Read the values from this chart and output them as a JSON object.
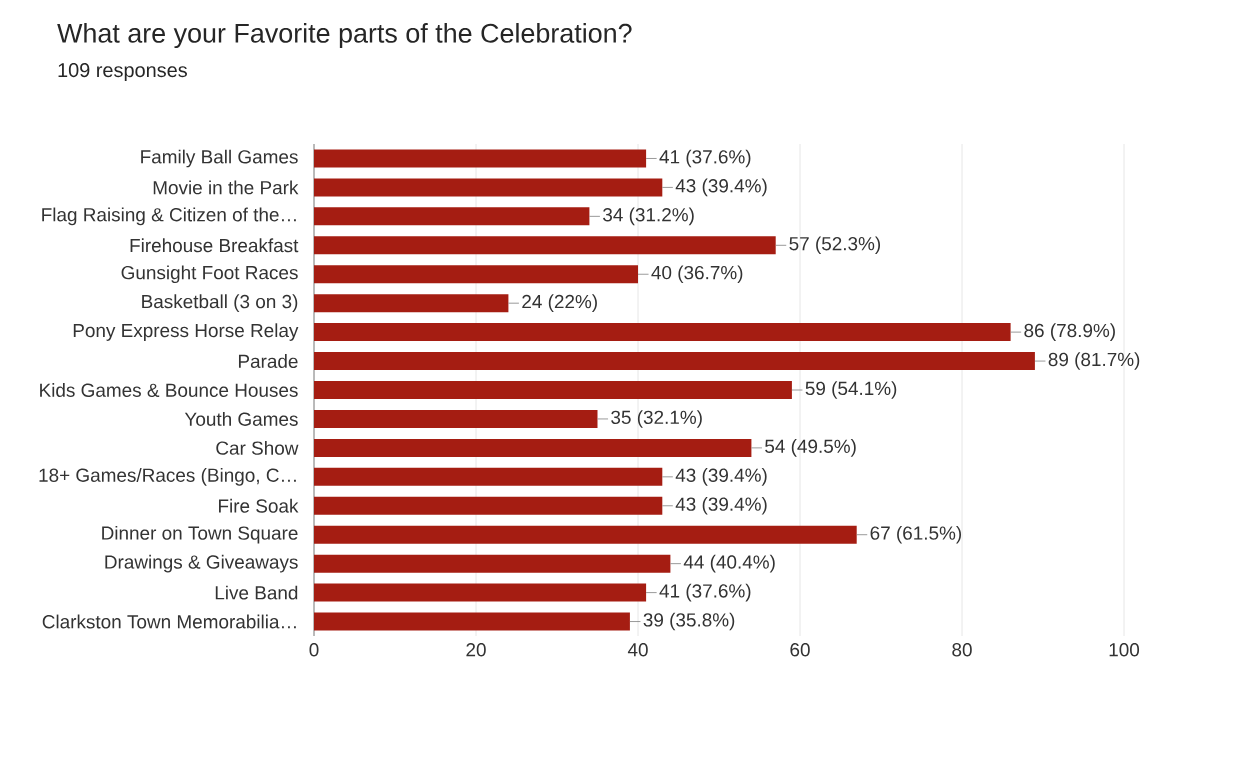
{
  "chart_data": {
    "type": "bar",
    "orientation": "horizontal",
    "title": "What are your Favorite parts of the Celebration?",
    "subtitle": "109 responses",
    "categories": [
      "Family Ball Games",
      "Movie in the Park",
      "Flag Raising & Citizen of the…",
      "Firehouse Breakfast",
      "Gunsight Foot Races",
      "Basketball (3 on 3)",
      "Pony Express Horse Relay",
      "Parade",
      "Kids Games & Bounce Houses",
      "Youth Games",
      "Car Show",
      "18+ Games/Races (Bingo, C…",
      "Fire Soak",
      "Dinner on Town Square",
      "Drawings & Giveaways",
      "Live Band",
      "Clarkston Town Memorabilia…"
    ],
    "values": [
      41,
      43,
      34,
      57,
      40,
      24,
      86,
      89,
      59,
      35,
      54,
      43,
      43,
      67,
      44,
      41,
      39
    ],
    "value_labels": [
      "41 (37.6%)",
      "43 (39.4%)",
      "34 (31.2%)",
      "57 (52.3%)",
      "40 (36.7%)",
      "24 (22%)",
      "86 (78.9%)",
      "89 (81.7%)",
      "59 (54.1%)",
      "35 (32.1%)",
      "54 (49.5%)",
      "43 (39.4%)",
      "43 (39.4%)",
      "67 (61.5%)",
      "44 (40.4%)",
      "41 (37.6%)",
      "39 (35.8%)"
    ],
    "color": "#a51d12",
    "xlim": [
      0,
      100
    ],
    "xticks": [
      0,
      20,
      40,
      60,
      80,
      100
    ],
    "grid": "x"
  }
}
